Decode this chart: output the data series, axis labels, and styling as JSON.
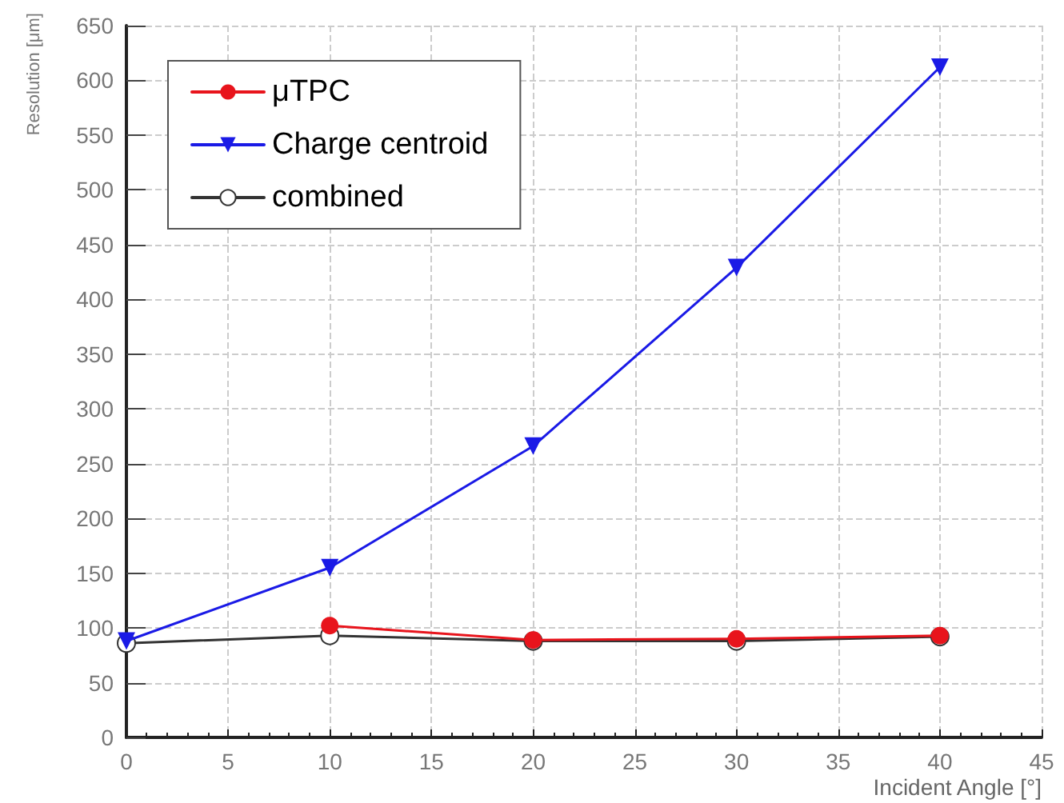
{
  "chart_data": {
    "type": "line",
    "xlabel": "Incident Angle [°]",
    "ylabel": "Resolution [μm]",
    "x": [
      0,
      10,
      20,
      30,
      40
    ],
    "series": [
      {
        "name": "μTPC",
        "color": "#e8141c",
        "marker": "circle",
        "x": [
          10,
          20,
          30,
          40
        ],
        "values": [
          102,
          89,
          90,
          93
        ]
      },
      {
        "name": "Charge centroid",
        "color": "#1a1ae6",
        "marker": "triangle",
        "values": [
          88,
          155,
          266,
          429,
          612
        ]
      },
      {
        "name": "combined",
        "color": "#333333",
        "marker": "circle",
        "values": [
          86,
          93,
          88,
          88,
          92
        ]
      }
    ],
    "xlim": [
      0,
      45
    ],
    "xticks": [
      0,
      5,
      10,
      15,
      20,
      25,
      30,
      35,
      40,
      45
    ],
    "ylim": [
      0,
      650
    ],
    "yticks": [
      0,
      50,
      100,
      150,
      200,
      250,
      300,
      350,
      400,
      450,
      500,
      550,
      600,
      650
    ],
    "grid": true,
    "legend": "top left",
    "line_style": "solid"
  }
}
